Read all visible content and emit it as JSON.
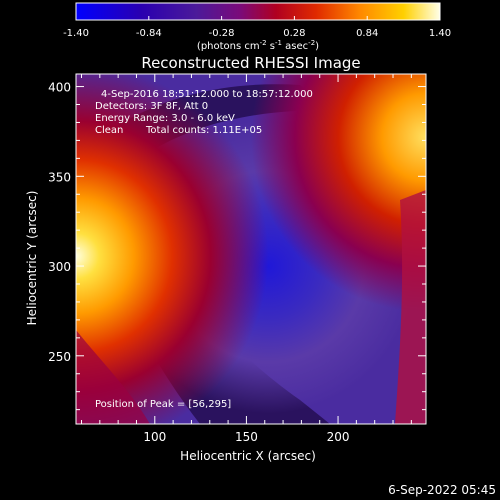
{
  "colorbar": {
    "ticks": [
      "-1.40",
      "-0.84",
      "-0.28",
      "0.28",
      "0.84",
      "1.40"
    ],
    "tick_values": [
      -1.4,
      -0.84,
      -0.28,
      0.28,
      0.84,
      1.4
    ],
    "unit_main": "(photons cm",
    "unit_exp1": "-2",
    "unit_mid": " s",
    "unit_exp2": "-1",
    "unit_tail": " asec",
    "unit_exp3": "-2",
    "unit_close": ")",
    "colors": [
      "#0000ff",
      "#4b0082",
      "#7a007a",
      "#cc0000",
      "#ff6600",
      "#ffcc00",
      "#ffffe0"
    ]
  },
  "chart_data": {
    "type": "heatmap",
    "title": "Reconstructed RHESSI Image",
    "xlabel": "Heliocentric X (arcsec)",
    "ylabel": "Heliocentric Y (arcsec)",
    "xlim": [
      57,
      248
    ],
    "ylim": [
      212,
      407
    ],
    "xticks": [
      100,
      150,
      200
    ],
    "yticks": [
      250,
      300,
      350,
      400
    ],
    "annotations": {
      "time": "4-Sep-2016 18:51:12.000 to 18:57:12.000",
      "detectors": "Detectors: 3F 8F, Att 0",
      "energy": "Energy Range: 3.0 - 6.0 keV",
      "clean": "Clean",
      "counts": "Total counts: 1.11E+05",
      "peak": "Position of Peak = [56,295]"
    },
    "peak_position": [
      56,
      295
    ],
    "min_region_center": [
      180,
      280
    ],
    "grid": false,
    "colormap": "blue-purple-red-yellow-white"
  },
  "footer": {
    "date": "6-Sep-2022 05:45"
  }
}
